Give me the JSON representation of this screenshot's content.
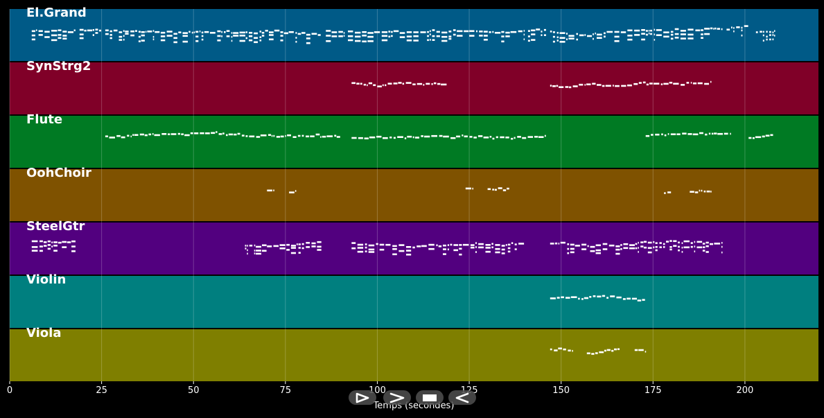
{
  "chart_data": {
    "type": "piano-roll",
    "xlabel": "Temps (secondes)",
    "xlim": [
      0,
      220
    ],
    "x_ticks": [
      "0",
      "25",
      "50",
      "75",
      "100",
      "125",
      "150",
      "175",
      "200"
    ],
    "x_tick_values": [
      0,
      25,
      50,
      75,
      100,
      125,
      150,
      175,
      200
    ],
    "grid": true,
    "tracks": [
      {
        "name": "El.Grand",
        "color": "#005a87",
        "segments": [
          [
            6,
            18
          ],
          [
            19,
            25
          ],
          [
            26,
            85
          ],
          [
            86,
            91
          ],
          [
            92,
            140
          ],
          [
            141,
            146
          ],
          [
            147,
            194
          ],
          [
            195,
            201
          ],
          [
            203,
            208
          ]
        ]
      },
      {
        "name": "SynStrg2",
        "color": "#800028",
        "segments": [
          [
            93,
            119
          ],
          [
            147,
            191
          ]
        ]
      },
      {
        "name": "Flute",
        "color": "#007a23",
        "segments": [
          [
            26,
            90
          ],
          [
            93,
            146
          ],
          [
            173,
            196
          ],
          [
            201,
            208
          ]
        ]
      },
      {
        "name": "OohChoir",
        "color": "#7f5200",
        "segments": [
          [
            70,
            72
          ],
          [
            76,
            78
          ],
          [
            124,
            126
          ],
          [
            130,
            136
          ],
          [
            178,
            180
          ],
          [
            185,
            191
          ]
        ]
      },
      {
        "name": "SteelGtr",
        "color": "#52007f",
        "segments": [
          [
            6,
            18
          ],
          [
            64,
            85
          ],
          [
            93,
            140
          ],
          [
            147,
            194
          ]
        ]
      },
      {
        "name": "Violin",
        "color": "#007f7f",
        "segments": [
          [
            147,
            173
          ]
        ]
      },
      {
        "name": "Viola",
        "color": "#7f7f00",
        "segments": [
          [
            147,
            153
          ],
          [
            157,
            166
          ],
          [
            170,
            173
          ]
        ]
      }
    ]
  },
  "controls": [
    {
      "name": "play-button",
      "icon": "play-icon"
    },
    {
      "name": "forward-button",
      "icon": "forward-icon"
    },
    {
      "name": "stop-button",
      "icon": "stop-icon"
    },
    {
      "name": "rewind-button",
      "icon": "rewind-icon"
    }
  ]
}
